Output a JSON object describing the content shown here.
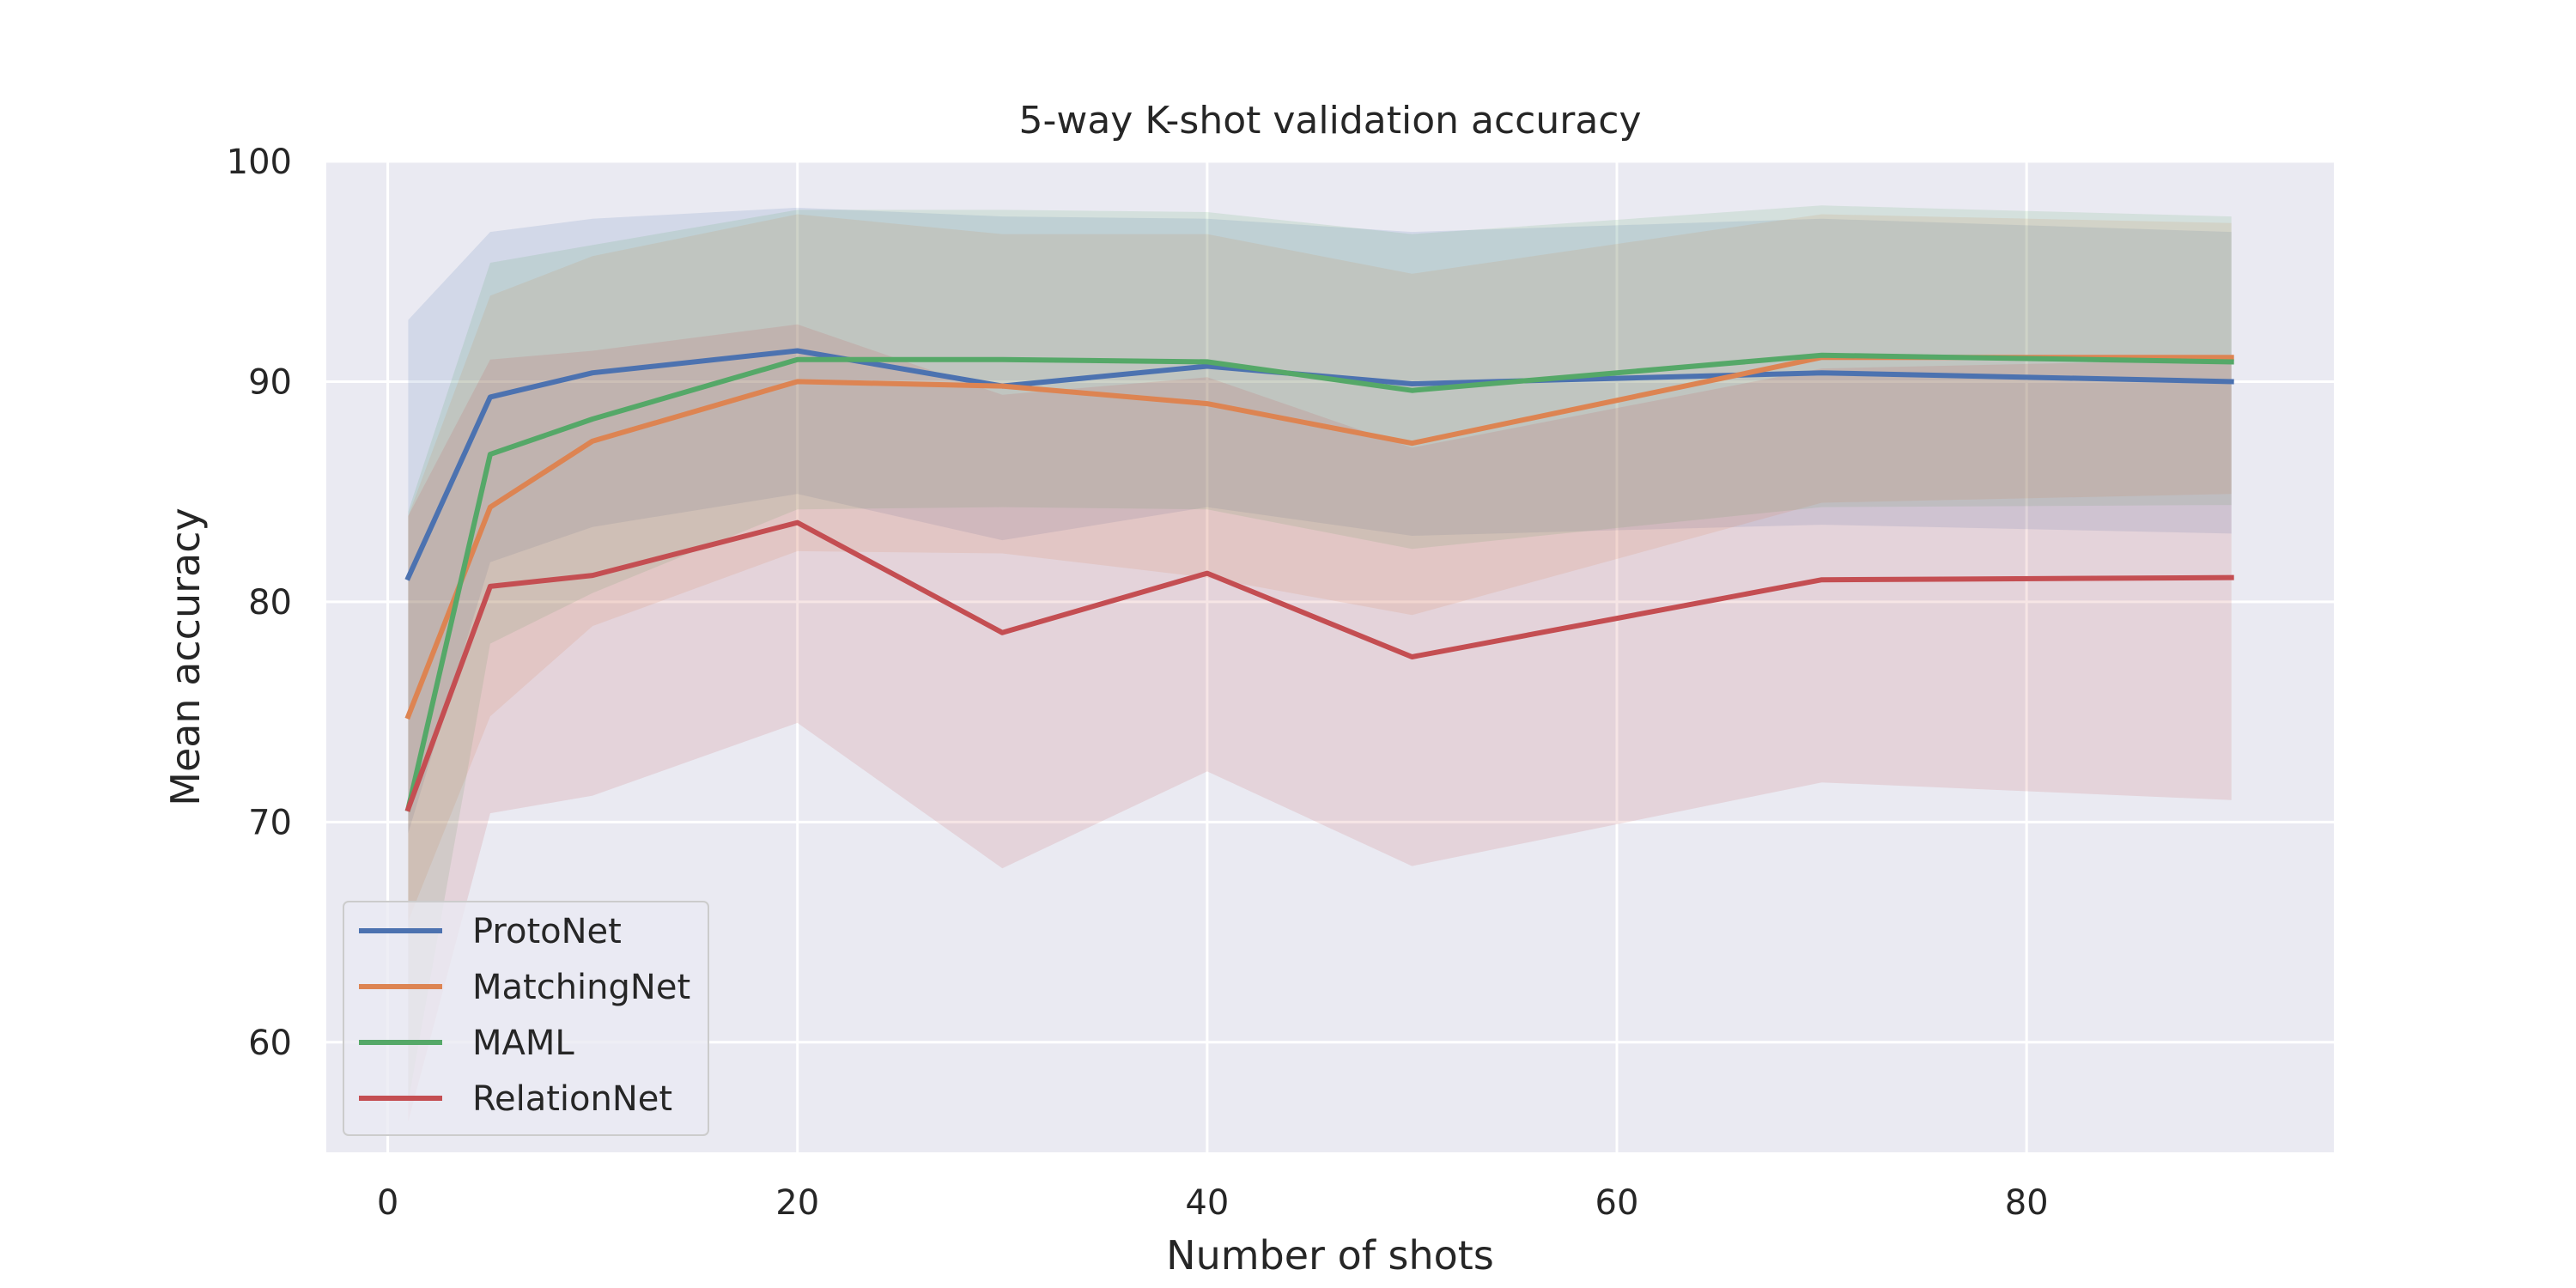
{
  "chart_data": {
    "type": "line",
    "title": "5-way K-shot validation accuracy",
    "xlabel": "Number of shots",
    "ylabel": "Mean accuracy",
    "xlim": [
      -3,
      95
    ],
    "ylim": [
      55,
      100
    ],
    "xticks": [
      0,
      20,
      40,
      60,
      80
    ],
    "yticks": [
      60,
      70,
      80,
      90,
      100
    ],
    "grid": true,
    "legend_position": "lower-left",
    "background_color": "#eaeaf2",
    "x": [
      1,
      5,
      10,
      20,
      30,
      40,
      50,
      70,
      90
    ],
    "series": [
      {
        "name": "ProtoNet",
        "color": "#4c72b0",
        "values": [
          81.1,
          89.3,
          90.4,
          91.4,
          89.8,
          90.7,
          89.9,
          90.4,
          90.0
        ],
        "upper": [
          92.8,
          96.8,
          97.4,
          97.9,
          97.5,
          97.4,
          96.8,
          97.4,
          96.8
        ],
        "lower": [
          69.5,
          81.8,
          83.4,
          84.9,
          82.8,
          84.3,
          83.0,
          83.5,
          83.1
        ]
      },
      {
        "name": "MatchingNet",
        "color": "#dd8452",
        "values": [
          74.8,
          84.3,
          87.3,
          90.0,
          89.8,
          89.0,
          87.2,
          91.1,
          91.1
        ],
        "upper": [
          83.9,
          93.9,
          95.7,
          97.6,
          96.7,
          96.7,
          94.9,
          97.6,
          97.2
        ],
        "lower": [
          65.5,
          74.8,
          78.9,
          82.3,
          82.2,
          81.1,
          79.4,
          84.5,
          84.9
        ]
      },
      {
        "name": "MAML",
        "color": "#55a868",
        "values": [
          70.6,
          86.7,
          88.3,
          91.0,
          91.0,
          90.9,
          89.6,
          91.2,
          90.9
        ],
        "upper": [
          84.1,
          95.4,
          96.2,
          97.8,
          97.8,
          97.7,
          96.7,
          98.0,
          97.5
        ],
        "lower": [
          57.3,
          78.1,
          80.4,
          84.2,
          84.3,
          84.2,
          82.4,
          84.3,
          84.4
        ]
      },
      {
        "name": "RelationNet",
        "color": "#c44e52",
        "values": [
          70.6,
          80.7,
          81.2,
          83.6,
          78.6,
          81.3,
          77.5,
          81.0,
          81.1
        ],
        "upper": [
          83.9,
          91.0,
          91.4,
          92.6,
          89.4,
          90.2,
          87.0,
          90.6,
          91.0
        ],
        "lower": [
          56.4,
          70.4,
          71.2,
          74.5,
          67.9,
          72.3,
          68.0,
          71.8,
          71.0
        ]
      }
    ]
  }
}
